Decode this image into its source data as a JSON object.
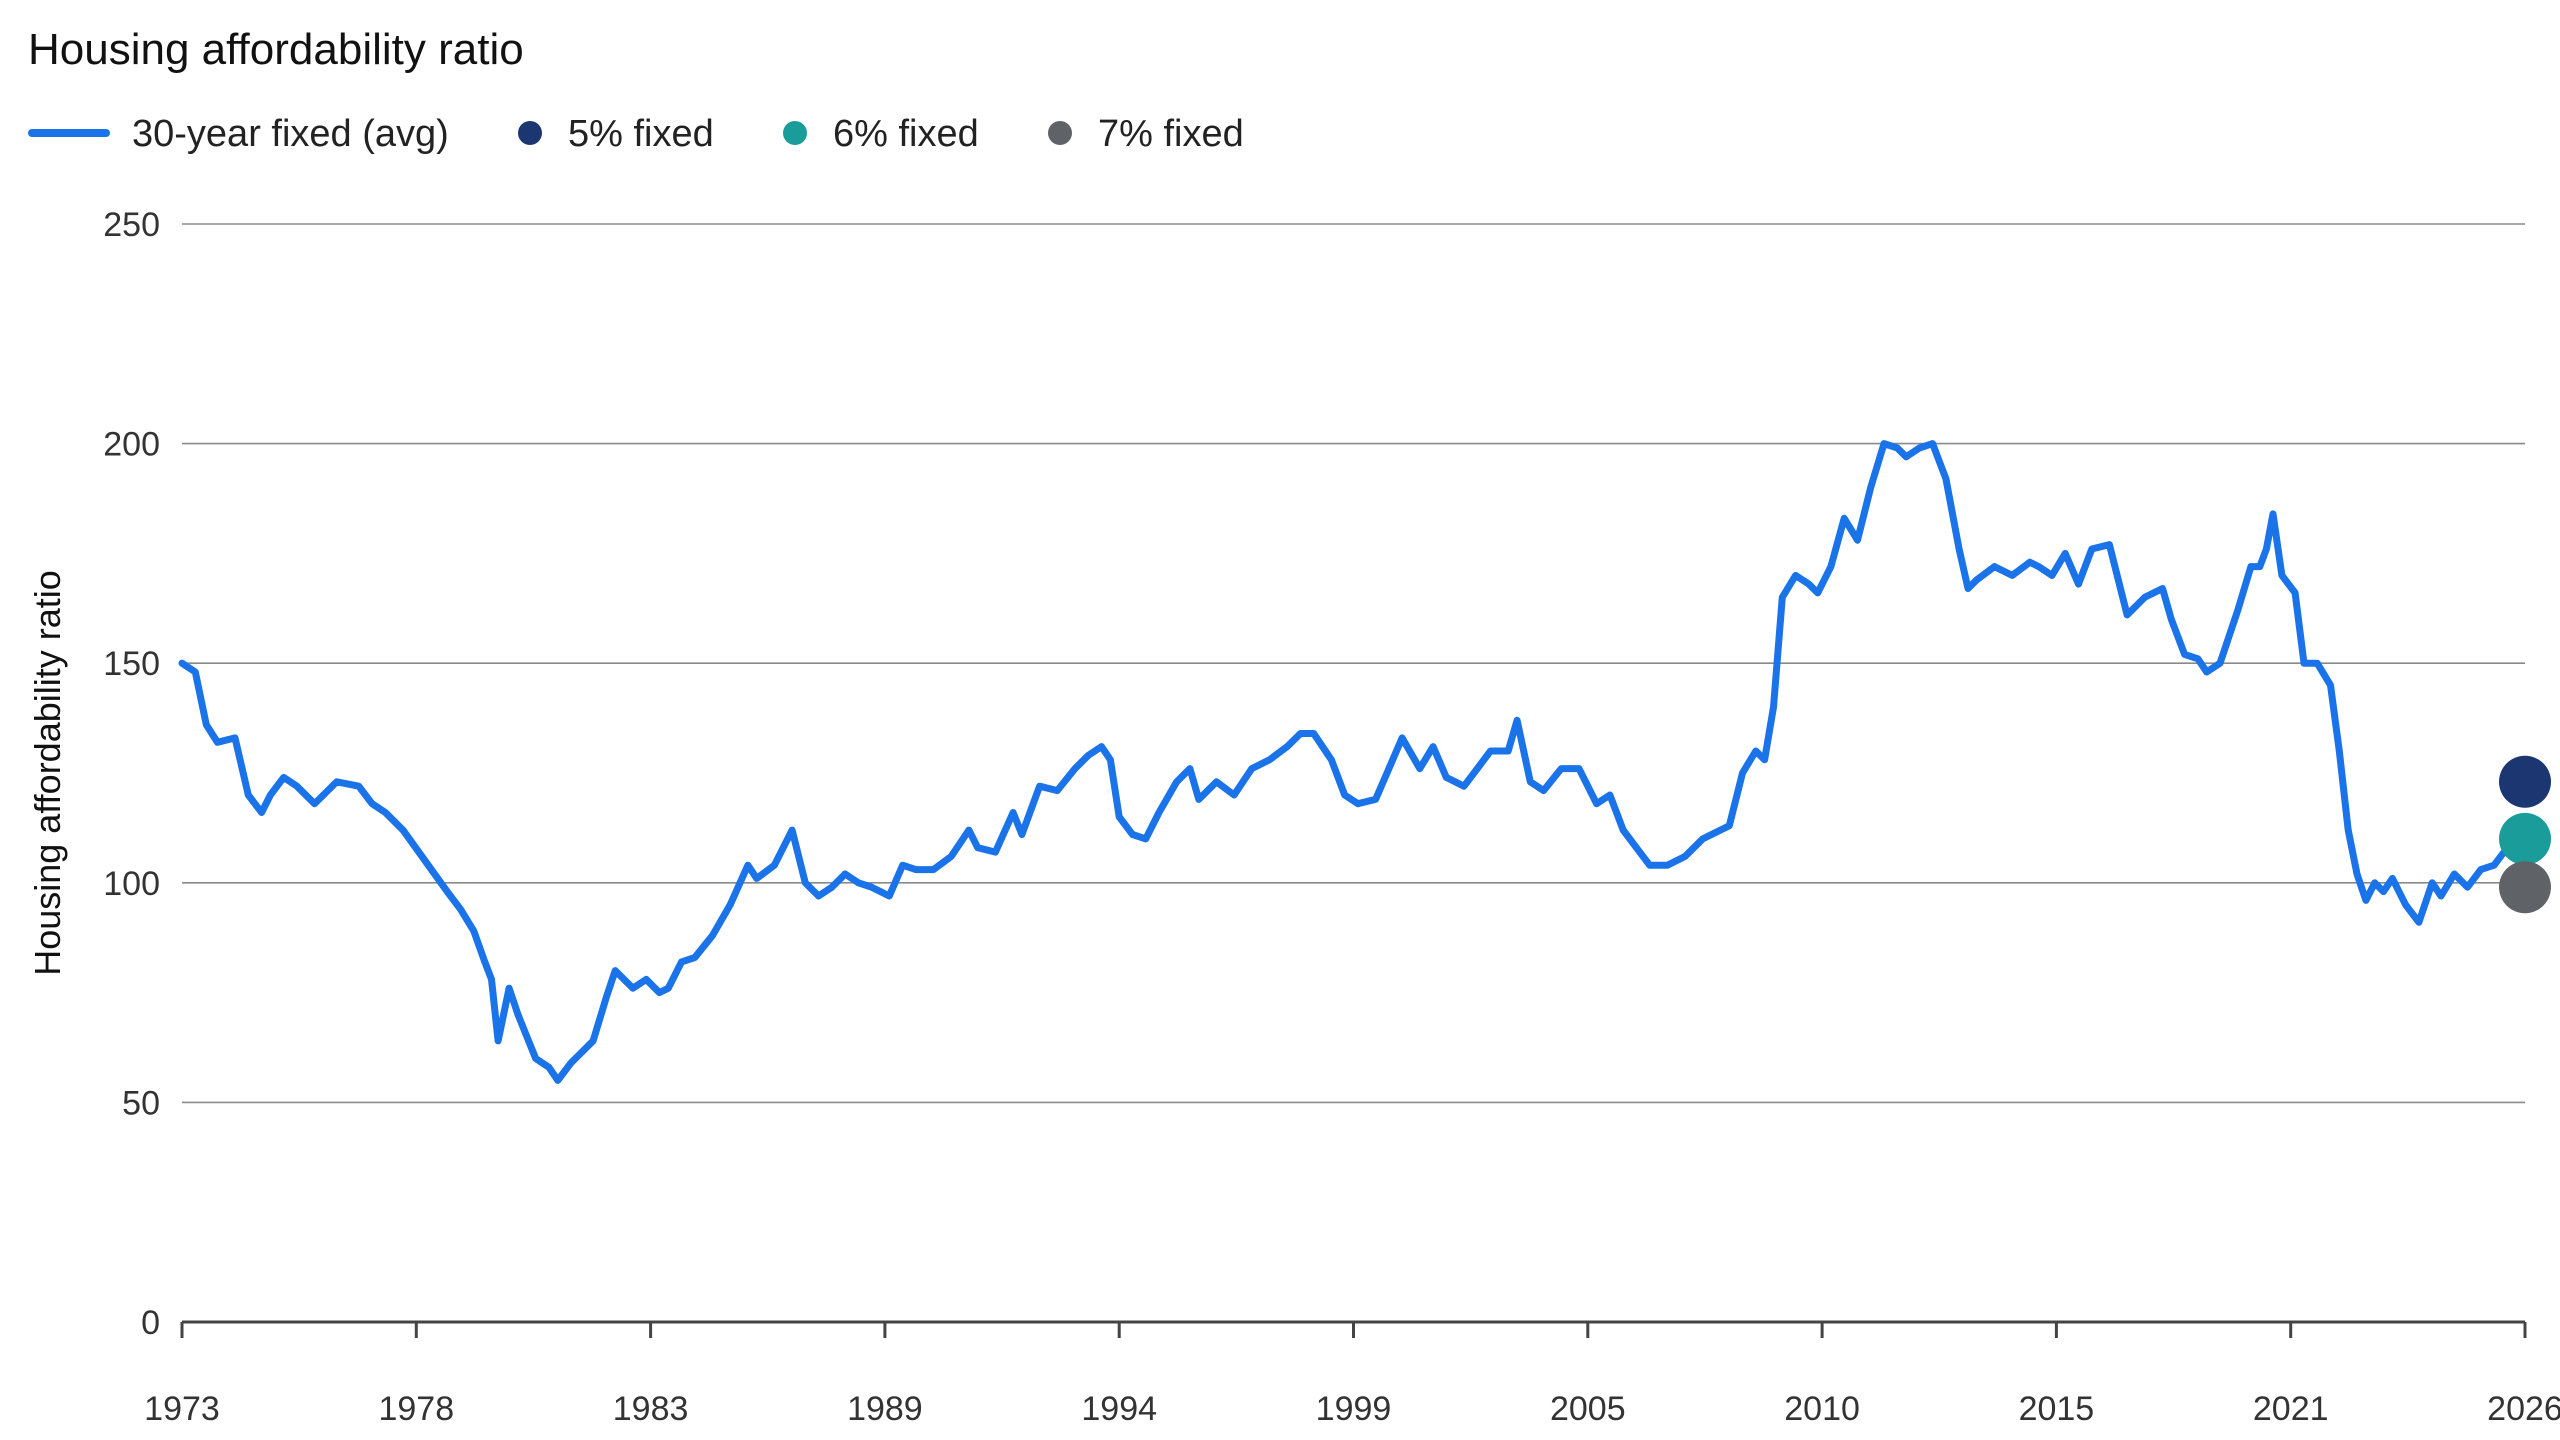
{
  "chart_data": {
    "type": "line",
    "title": "Housing affordability ratio",
    "ylabel": "Housing affordability ratio",
    "xlabel": "",
    "ylim": [
      0,
      250
    ],
    "yticks": [
      0,
      50,
      100,
      150,
      200,
      250
    ],
    "xlim": [
      1973.0,
      2026.0
    ],
    "xticks": [
      "1973",
      "1978",
      "1983",
      "1989",
      "1994",
      "1999",
      "2005",
      "2010",
      "2015",
      "2021",
      "2026"
    ],
    "grid": "horizontal",
    "legend_position": "top-left",
    "colors": {
      "line": "#1a73e8",
      "five": "#1b3670",
      "six": "#1a9c9a",
      "seven": "#5f6368"
    },
    "series": [
      {
        "name": "30-year fixed (avg)",
        "x": [
          1973.0,
          1973.3,
          1973.55,
          1973.8,
          1974.2,
          1974.5,
          1974.8,
          1975.0,
          1975.3,
          1975.6,
          1976.0,
          1976.5,
          1977.0,
          1977.3,
          1977.6,
          1978.0,
          1978.5,
          1979.0,
          1979.3,
          1979.6,
          1979.85,
          1980.0,
          1980.15,
          1980.4,
          1980.6,
          1980.8,
          1981.0,
          1981.3,
          1981.5,
          1981.8,
          1982.1,
          1982.3,
          1982.6,
          1982.8,
          1983.2,
          1983.5,
          1983.8,
          1984.0,
          1984.3,
          1984.6,
          1985.0,
          1985.4,
          1985.8,
          1986.0,
          1986.4,
          1986.8,
          1987.1,
          1987.4,
          1987.7,
          1988.0,
          1988.3,
          1988.6,
          1989.0,
          1989.3,
          1989.6,
          1990.0,
          1990.4,
          1990.8,
          1991.0,
          1991.4,
          1991.8,
          1992.0,
          1992.4,
          1992.8,
          1993.2,
          1993.5,
          1993.8,
          1994.0,
          1994.2,
          1994.5,
          1994.8,
          1995.1,
          1995.5,
          1995.8,
          1996.0,
          1996.4,
          1996.8,
          1997.2,
          1997.6,
          1998.0,
          1998.3,
          1998.6,
          1999.0,
          1999.3,
          1999.6,
          2000.0,
          2000.3,
          2000.6,
          2001.0,
          2001.3,
          2001.6,
          2002.0,
          2002.3,
          2002.6,
          2003.0,
          2003.2,
          2003.5,
          2003.8,
          2004.2,
          2004.6,
          2005.0,
          2005.3,
          2005.6,
          2005.9,
          2006.2,
          2006.6,
          2007.0,
          2007.4,
          2007.8,
          2008.0,
          2008.3,
          2008.6,
          2008.8,
          2009.0,
          2009.2,
          2009.5,
          2009.8,
          2010.0,
          2010.3,
          2010.6,
          2010.9,
          2011.2,
          2011.5,
          2011.8,
          2012.0,
          2012.3,
          2012.6,
          2012.9,
          2013.2,
          2013.4,
          2013.6,
          2014.0,
          2014.4,
          2014.8,
          2015.0,
          2015.3,
          2015.6,
          2015.9,
          2016.2,
          2016.6,
          2017.0,
          2017.4,
          2017.8,
          2018.0,
          2018.3,
          2018.6,
          2018.8,
          2019.1,
          2019.5,
          2019.8,
          2020.0,
          2020.15,
          2020.3,
          2020.5,
          2020.8,
          2021.0,
          2021.3,
          2021.6,
          2021.8,
          2022.0,
          2022.2,
          2022.4,
          2022.6,
          2022.8,
          2023.0,
          2023.3,
          2023.6,
          2023.9,
          2024.1,
          2024.4,
          2024.7,
          2025.0,
          2025.3,
          2025.6
        ],
        "values": [
          150,
          148,
          136,
          132,
          133,
          120,
          116,
          120,
          124,
          122,
          118,
          123,
          122,
          118,
          116,
          112,
          105,
          98,
          94,
          89,
          82,
          78,
          64,
          76,
          70,
          65,
          60,
          58,
          55,
          59,
          62,
          64,
          74,
          80,
          76,
          78,
          75,
          76,
          82,
          83,
          88,
          95,
          104,
          101,
          104,
          112,
          100,
          97,
          99,
          102,
          100,
          99,
          97,
          104,
          103,
          103,
          106,
          112,
          108,
          107,
          116,
          111,
          122,
          121,
          126,
          129,
          131,
          128,
          115,
          111,
          110,
          116,
          123,
          126,
          119,
          123,
          120,
          126,
          128,
          131,
          134,
          134,
          128,
          120,
          118,
          119,
          126,
          133,
          126,
          131,
          124,
          122,
          126,
          130,
          130,
          137,
          123,
          121,
          126,
          126,
          118,
          120,
          112,
          108,
          104,
          104,
          106,
          110,
          112,
          113,
          125,
          130,
          128,
          140,
          165,
          170,
          168,
          166,
          172,
          183,
          178,
          190,
          200,
          199,
          197,
          199,
          200,
          192,
          176,
          167,
          169,
          172,
          170,
          173,
          172,
          170,
          175,
          168,
          176,
          177,
          161,
          165,
          167,
          160,
          152,
          151,
          148,
          150,
          162,
          172,
          172,
          176,
          184,
          170,
          166,
          150,
          150,
          145,
          130,
          112,
          102,
          96,
          100,
          98,
          101,
          95,
          91,
          100,
          97,
          102,
          99,
          103,
          104,
          108
        ]
      },
      {
        "name": "5% fixed",
        "x": 2026.0,
        "value": 123
      },
      {
        "name": "6% fixed",
        "x": 2026.0,
        "value": 110
      },
      {
        "name": "7% fixed",
        "x": 2026.0,
        "value": 99
      }
    ]
  }
}
